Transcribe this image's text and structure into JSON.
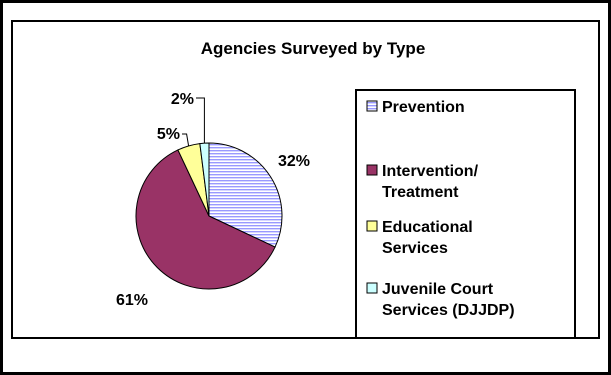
{
  "chart_data": {
    "type": "pie",
    "title": "Agencies Surveyed by Type",
    "categories": [
      "Prevention",
      "Intervention/\nTreatment",
      "Educational\nServices",
      "Juvenile Court\nServices (DJJDP)"
    ],
    "values": [
      32,
      61,
      5,
      2
    ],
    "data_labels": [
      "32%",
      "61%",
      "5%",
      "2%"
    ],
    "colors": [
      "#ccccff",
      "#993366",
      "#ffff99",
      "#ccffff"
    ],
    "legend_position": "right"
  }
}
